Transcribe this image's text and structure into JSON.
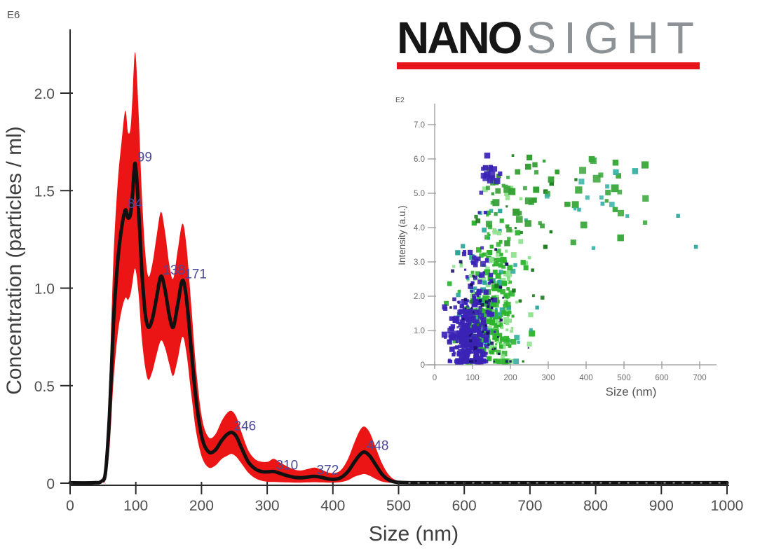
{
  "logo": {
    "nano": "NANO",
    "sight": "SIGHT",
    "nano_color": "#161616",
    "sight_color": "#8d9296",
    "underline_color": "#e8141c"
  },
  "chart_data": [
    {
      "id": "main",
      "type": "area",
      "title": "",
      "xlabel": "Size (nm)",
      "ylabel": "Concentration (particles / ml)",
      "y_exponent_label": "E6",
      "xlim": [
        0,
        1000
      ],
      "ylim": [
        0,
        2.3
      ],
      "grid": false,
      "x_ticks": [
        0,
        100,
        200,
        300,
        400,
        500,
        600,
        700,
        800,
        900,
        1000
      ],
      "y_ticks": [
        {
          "v": 0,
          "label": "0"
        },
        {
          "v": 0.5,
          "label": "0.5"
        },
        {
          "v": 1.0,
          "label": "1.0"
        },
        {
          "v": 1.5,
          "label": "1.5"
        },
        {
          "v": 2.0,
          "label": "2.0"
        }
      ],
      "band_color": "#ec1515",
      "line_color": "#111111",
      "axis_color": "#2b2b2b",
      "peak_label_color": "#4c4899",
      "peaks": [
        {
          "label": "84",
          "x": 84,
          "y": 1.4
        },
        {
          "label": "99",
          "x": 99,
          "y": 1.64
        },
        {
          "label": "138",
          "x": 138,
          "y": 1.06
        },
        {
          "label": "171",
          "x": 171,
          "y": 1.04
        },
        {
          "label": "246",
          "x": 246,
          "y": 0.26
        },
        {
          "label": "310",
          "x": 310,
          "y": 0.06
        },
        {
          "label": "372",
          "x": 372,
          "y": 0.035
        },
        {
          "label": "448",
          "x": 448,
          "y": 0.16
        }
      ],
      "series": {
        "x": [
          0,
          35,
          48,
          54,
          60,
          66,
          72,
          78,
          84,
          88,
          92,
          95,
          99,
          104,
          109,
          114,
          119,
          125,
          131,
          138,
          144,
          151,
          157,
          164,
          171,
          177,
          184,
          192,
          201,
          211,
          221,
          231,
          239,
          246,
          253,
          261,
          271,
          281,
          291,
          301,
          310,
          320,
          331,
          341,
          351,
          361,
          372,
          382,
          393,
          403,
          413,
          423,
          433,
          441,
          448,
          456,
          465,
          475,
          486,
          497,
          512,
          535,
          570,
          640,
          760,
          880,
          1000
        ],
        "mean": [
          0.002,
          0.002,
          0.01,
          0.06,
          0.35,
          0.82,
          1.12,
          1.3,
          1.4,
          1.36,
          1.38,
          1.48,
          1.64,
          1.42,
          1.1,
          0.88,
          0.8,
          0.84,
          0.94,
          1.06,
          1.0,
          0.86,
          0.8,
          0.92,
          1.04,
          0.95,
          0.7,
          0.42,
          0.23,
          0.16,
          0.17,
          0.22,
          0.25,
          0.26,
          0.24,
          0.18,
          0.11,
          0.075,
          0.06,
          0.058,
          0.06,
          0.05,
          0.038,
          0.03,
          0.028,
          0.031,
          0.035,
          0.03,
          0.022,
          0.02,
          0.03,
          0.06,
          0.11,
          0.145,
          0.16,
          0.14,
          0.095,
          0.045,
          0.015,
          0.005,
          0.003,
          0.002,
          0.002,
          0.002,
          0.002,
          0.002,
          0.002
        ],
        "upper": [
          0.004,
          0.004,
          0.02,
          0.12,
          0.55,
          1.15,
          1.52,
          1.74,
          1.91,
          1.8,
          1.82,
          1.98,
          2.21,
          1.92,
          1.5,
          1.2,
          1.06,
          1.12,
          1.25,
          1.39,
          1.3,
          1.12,
          1.05,
          1.2,
          1.33,
          1.22,
          0.93,
          0.58,
          0.33,
          0.235,
          0.25,
          0.32,
          0.36,
          0.37,
          0.34,
          0.26,
          0.17,
          0.125,
          0.11,
          0.11,
          0.125,
          0.105,
          0.085,
          0.07,
          0.065,
          0.072,
          0.08,
          0.07,
          0.055,
          0.052,
          0.07,
          0.125,
          0.21,
          0.27,
          0.29,
          0.26,
          0.185,
          0.1,
          0.04,
          0.014,
          0.006,
          0.004,
          0.004,
          0.004,
          0.004,
          0.004,
          0.004
        ],
        "lower": [
          0.001,
          0.001,
          0.004,
          0.02,
          0.18,
          0.52,
          0.75,
          0.88,
          0.95,
          0.94,
          0.97,
          1.03,
          1.1,
          0.98,
          0.75,
          0.6,
          0.53,
          0.57,
          0.65,
          0.73,
          0.7,
          0.61,
          0.55,
          0.64,
          0.75,
          0.67,
          0.47,
          0.26,
          0.13,
          0.08,
          0.09,
          0.125,
          0.14,
          0.15,
          0.135,
          0.1,
          0.055,
          0.027,
          0.013,
          0.007,
          0.006,
          0.005,
          0.004,
          0.003,
          0.003,
          0.004,
          0.005,
          0.004,
          0.003,
          0.003,
          0.006,
          0.015,
          0.033,
          0.042,
          0.047,
          0.038,
          0.022,
          0.008,
          0.002,
          0.001,
          0.001,
          0.001,
          0.001,
          0.001,
          0.001,
          0.001,
          0.001
        ]
      }
    },
    {
      "id": "inset",
      "type": "scatter",
      "title": "",
      "xlabel": "Size (nm)",
      "ylabel": "Intensity (a.u.)",
      "y_exponent_label": "E2",
      "xlim": [
        0,
        750
      ],
      "ylim": [
        0,
        7.6
      ],
      "grid": false,
      "x_ticks": [
        0,
        100,
        200,
        300,
        400,
        500,
        600,
        700
      ],
      "y_ticks": [
        {
          "v": 0,
          "label": "0"
        },
        {
          "v": 1,
          "label": "1.0"
        },
        {
          "v": 2,
          "label": "2.0"
        },
        {
          "v": 3,
          "label": "3.0"
        },
        {
          "v": 4,
          "label": "4.0"
        },
        {
          "v": 5,
          "label": "5.0"
        },
        {
          "v": 6,
          "label": "6.0"
        },
        {
          "v": 7,
          "label": "7.0"
        }
      ],
      "axis_color": "#9a9a9a",
      "point_style": "square",
      "clusters": [
        {
          "name": "green-core",
          "color": "#2db42d",
          "n": 150,
          "cx": 135,
          "cy": 1.1,
          "sx": 35,
          "sy": 0.6,
          "smin": 3,
          "smax": 9
        },
        {
          "name": "light-green",
          "color": "#8ee28e",
          "n": 70,
          "cx": 150,
          "cy": 1.5,
          "sx": 42,
          "sy": 0.9,
          "smin": 3,
          "smax": 9
        },
        {
          "name": "teal-core",
          "color": "#2ba89b",
          "n": 55,
          "cx": 150,
          "cy": 1.9,
          "sx": 40,
          "sy": 1.1,
          "smin": 3,
          "smax": 8
        },
        {
          "name": "green-mid",
          "color": "#2db42d",
          "n": 90,
          "cx": 160,
          "cy": 2.7,
          "sx": 35,
          "sy": 1.0,
          "smin": 3,
          "smax": 9
        },
        {
          "name": "indigo-core",
          "color": "#3a23b5",
          "n": 240,
          "cx": 85,
          "cy": 0.75,
          "sx": 26,
          "sy": 0.5,
          "smin": 3,
          "smax": 9
        },
        {
          "name": "indigo-upper",
          "color": "#3a23b5",
          "n": 60,
          "cx": 115,
          "cy": 2.2,
          "sx": 22,
          "sy": 0.9,
          "smin": 3,
          "smax": 8
        },
        {
          "name": "dark-green",
          "color": "#1e7d1e",
          "n": 22,
          "cx": 210,
          "cy": 3.6,
          "sx": 70,
          "sy": 1.4,
          "smin": 3,
          "smax": 7
        },
        {
          "name": "light-green-up",
          "color": "#8ee28e",
          "n": 18,
          "cx": 185,
          "cy": 3.9,
          "sx": 30,
          "sy": 0.8,
          "smin": 4,
          "smax": 9
        },
        {
          "name": "green-upper",
          "color": "#34a034",
          "n": 40,
          "cx": 230,
          "cy": 4.8,
          "sx": 55,
          "sy": 0.8,
          "smin": 4,
          "smax": 11
        },
        {
          "name": "green-right",
          "color": "#3aa83a",
          "n": 22,
          "cx": 430,
          "cy": 5.1,
          "sx": 50,
          "sy": 0.7,
          "smin": 5,
          "smax": 11
        },
        {
          "name": "teal-right",
          "color": "#37b3a6",
          "n": 13,
          "cx": 440,
          "cy": 4.9,
          "sx": 70,
          "sy": 0.7,
          "smin": 4,
          "smax": 9
        },
        {
          "name": "indigo-top",
          "color": "#3a23b5",
          "n": 15,
          "cx": 148,
          "cy": 5.55,
          "sx": 13,
          "sy": 0.3,
          "smin": 5,
          "smax": 10
        },
        {
          "name": "navy-specks",
          "color": "#181163",
          "n": 45,
          "cx": 135,
          "cy": 1.4,
          "sx": 40,
          "sy": 1.1,
          "smin": 2,
          "smax": 5
        },
        {
          "name": "teal-outliers",
          "color": "#2ba89b",
          "n": 2,
          "cx": 645,
          "cy": 3.8,
          "sx": 25,
          "sy": 0.3,
          "smin": 5,
          "smax": 6
        }
      ]
    }
  ]
}
